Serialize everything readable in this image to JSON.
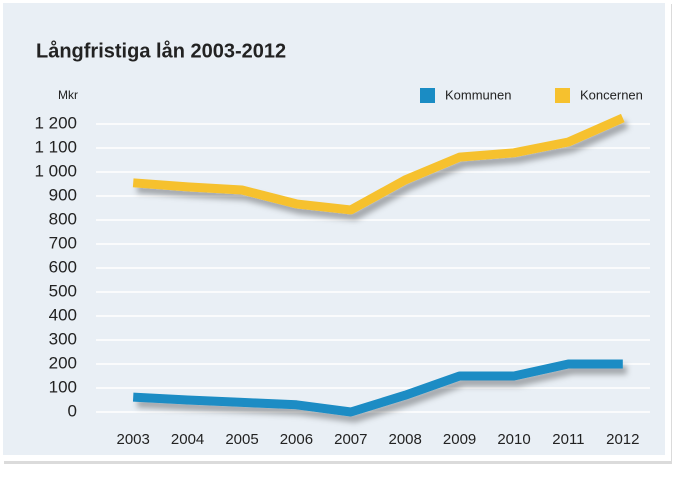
{
  "chart_data": {
    "type": "line",
    "title": "Långfristiga lån 2003-2012",
    "y_label": "Mkr",
    "categories": [
      "2003",
      "2004",
      "2005",
      "2006",
      "2007",
      "2008",
      "2009",
      "2010",
      "2011",
      "2012"
    ],
    "series": [
      {
        "name": "Kommunen",
        "color": "#1a8cc4",
        "values": [
          62,
          50,
          40,
          30,
          0,
          70,
          150,
          150,
          200,
          200
        ]
      },
      {
        "name": "Koncernen",
        "color": "#f6c12e",
        "values": [
          955,
          938,
          925,
          867,
          842,
          967,
          1062,
          1080,
          1125,
          1225
        ]
      }
    ],
    "ylim": [
      0,
      1200
    ],
    "yticks": [
      0,
      100,
      200,
      300,
      400,
      500,
      600,
      700,
      800,
      900,
      {
        "value": 1000,
        "label": "1 000"
      },
      {
        "value": 1100,
        "label": "1 100"
      },
      {
        "value": 1200,
        "label": "1 200"
      }
    ],
    "grid": true,
    "legend": "top-right"
  }
}
